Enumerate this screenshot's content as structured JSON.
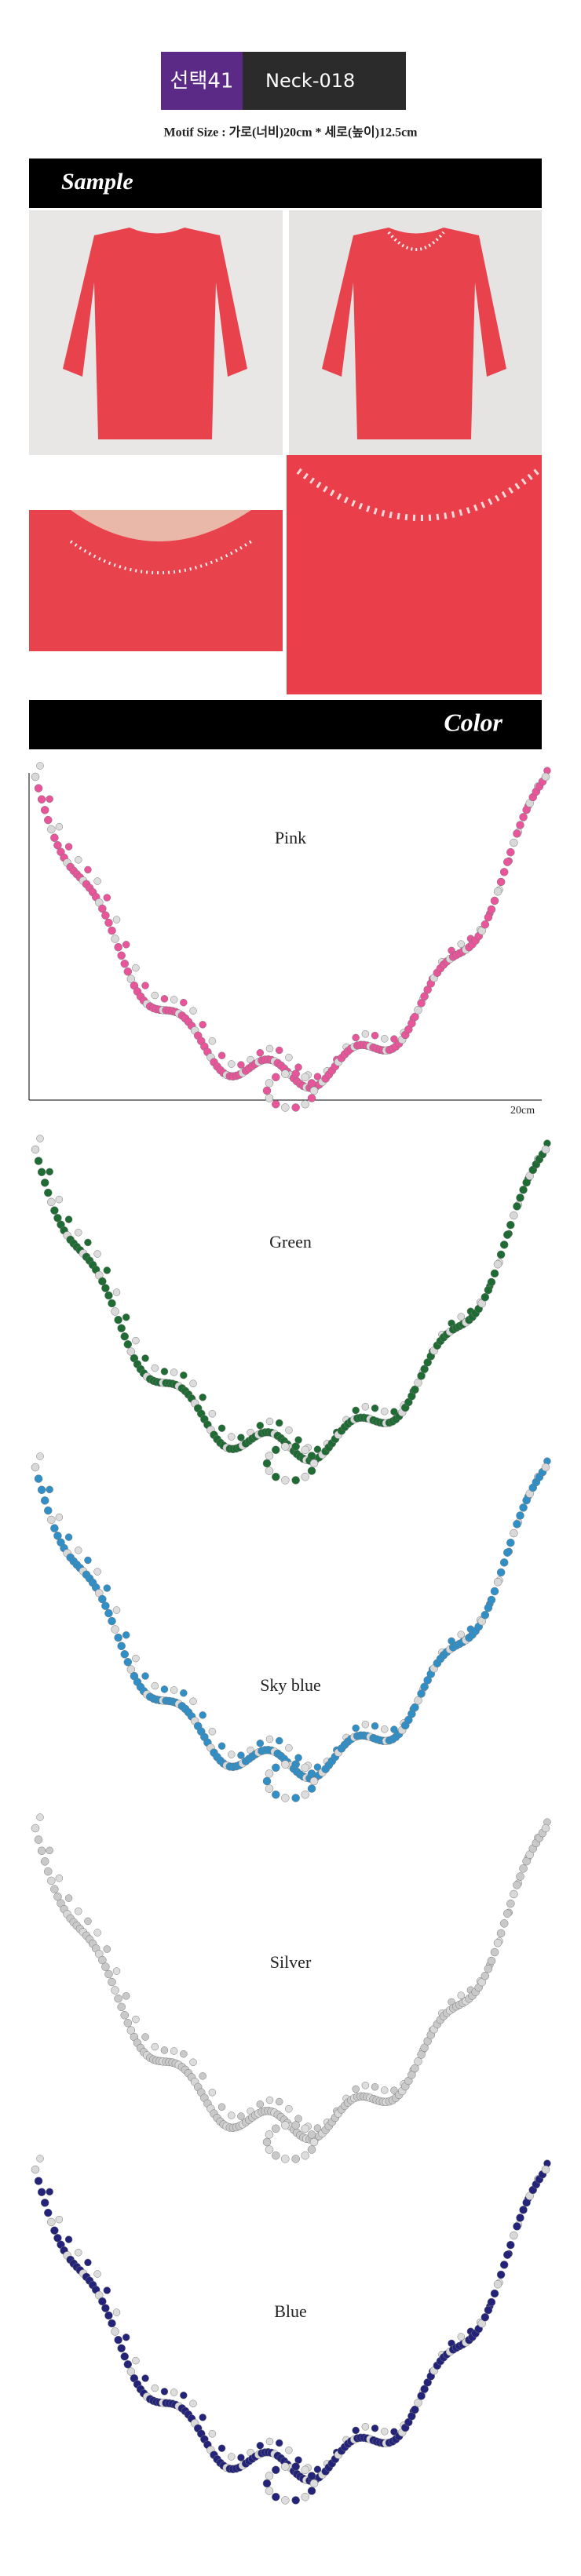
{
  "header": {
    "badge": "선택41",
    "code": "Neck-018"
  },
  "motif_size": "Motif Size : 가로(너비)20cm * 세로(높이)12.5cm",
  "sections": {
    "sample": "Sample",
    "color": "Color"
  },
  "dimension": "20cm",
  "colors": [
    "Pink",
    "Green",
    "Sky blue",
    "Silver",
    "Blue"
  ]
}
